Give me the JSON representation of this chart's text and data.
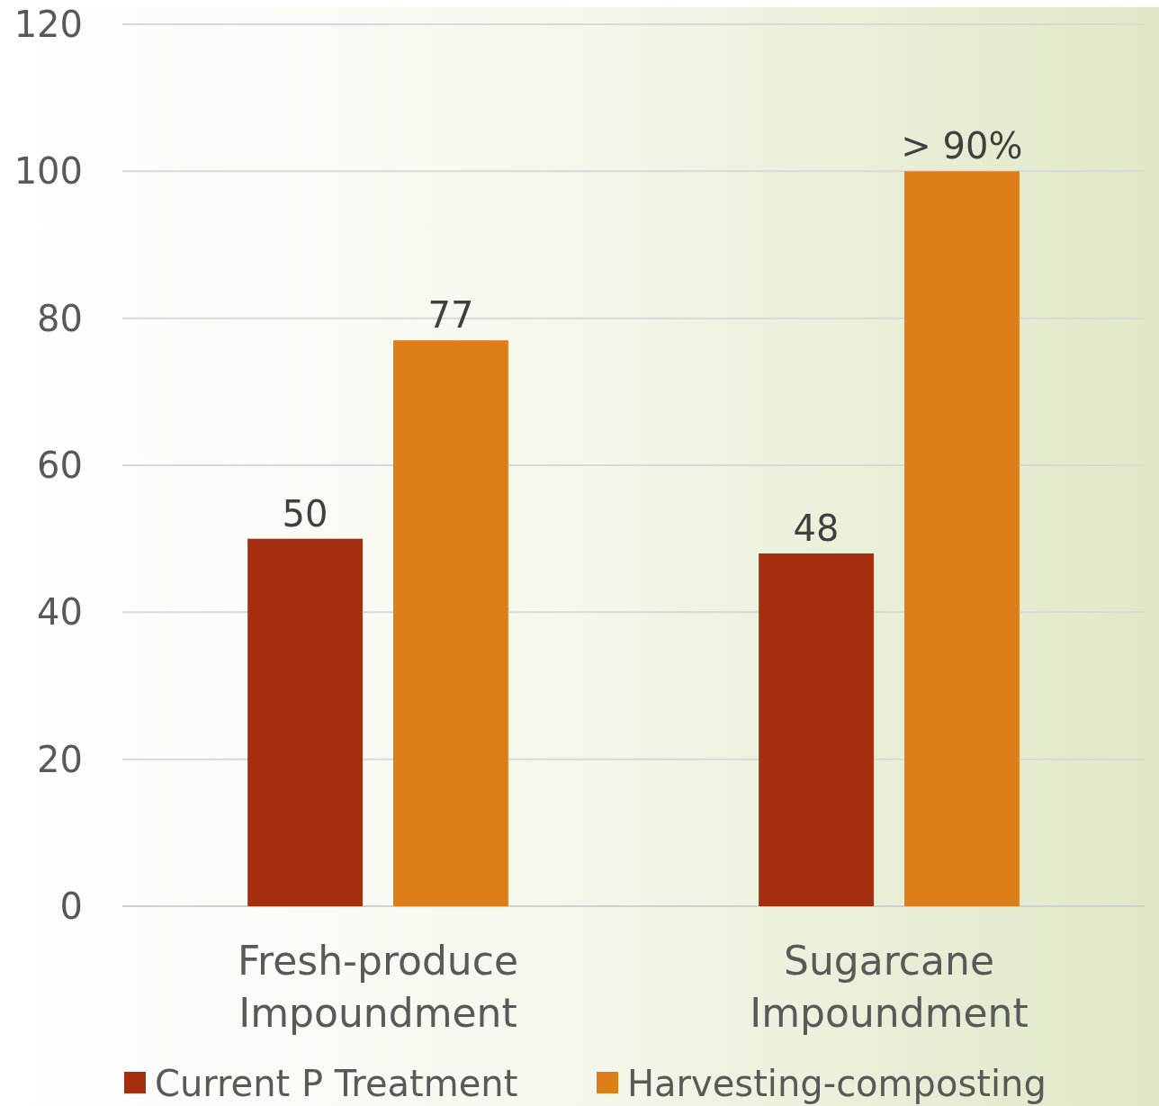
{
  "chart_data": {
    "type": "bar",
    "categories": [
      "Fresh-produce Impoundment",
      "Sugarcane Impoundment"
    ],
    "series": [
      {
        "name": "Current P Treatment",
        "color": "#a52e0f",
        "values": [
          50,
          48
        ],
        "value_labels": [
          "50",
          "48"
        ]
      },
      {
        "name": "Harvesting-composting",
        "color": "#dd7e19",
        "values": [
          77,
          100
        ],
        "value_labels": [
          "77",
          "> 90%"
        ]
      }
    ],
    "ylim": [
      0,
      120
    ],
    "yticks": [
      0,
      20,
      40,
      60,
      80,
      100,
      120
    ],
    "grid": "y",
    "legend": "bottom"
  }
}
